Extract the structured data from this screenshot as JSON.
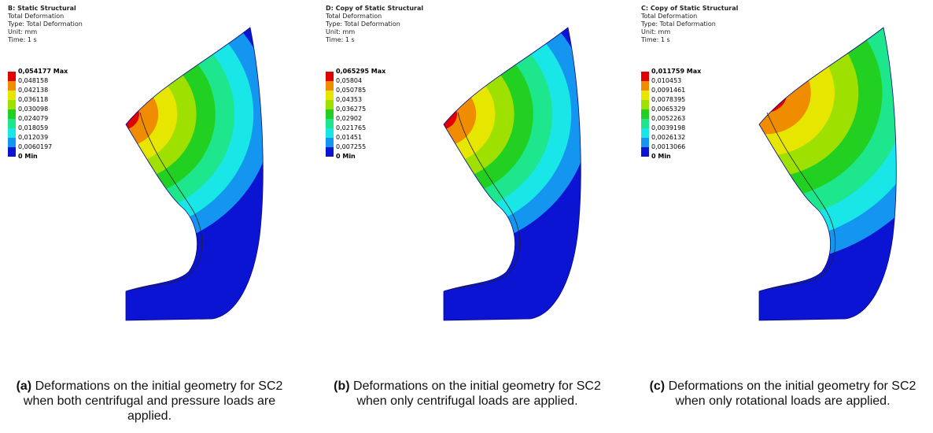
{
  "panels": [
    {
      "title": "B: Static Structural",
      "lines": [
        "Total Deformation",
        "Type: Total Deformation",
        "Unit: mm",
        "Time: 1 s"
      ],
      "legend": [
        "0,054177 Max",
        "0,048158",
        "0,042138",
        "0,036118",
        "0,030098",
        "0,024079",
        "0,018059",
        "0,012039",
        "0,0060197",
        "0 Min"
      ],
      "caption": {
        "label": "(a)",
        "text": "Deformations on the initial geometry for SC2 when both centrifugal and pressure loads are applied."
      }
    },
    {
      "title": "D: Copy of Static Structural",
      "lines": [
        "Total Deformation",
        "Type: Total Deformation",
        "Unit: mm",
        "Time: 1 s"
      ],
      "legend": [
        "0,065295 Max",
        "0,05804",
        "0,050785",
        "0,04353",
        "0,036275",
        "0,02902",
        "0,021765",
        "0,01451",
        "0,007255",
        "0 Min"
      ],
      "caption": {
        "label": "(b)",
        "text": "Deformations on the initial geometry for SC2 when only centrifugal loads are applied."
      }
    },
    {
      "title": "C: Copy of Static Structural",
      "lines": [
        "Total Deformation",
        "Type: Total Deformation",
        "Unit: mm",
        "Time: 1 s"
      ],
      "legend": [
        "0,011759 Max",
        "0,010453",
        "0,0091461",
        "0,0078395",
        "0,0065329",
        "0,0052263",
        "0,0039198",
        "0,0026132",
        "0,0013066",
        "0 Min"
      ],
      "caption": {
        "label": "(c)",
        "text": "Deformations on the initial geometry for SC2 when only rotational loads are applied."
      }
    }
  ]
}
